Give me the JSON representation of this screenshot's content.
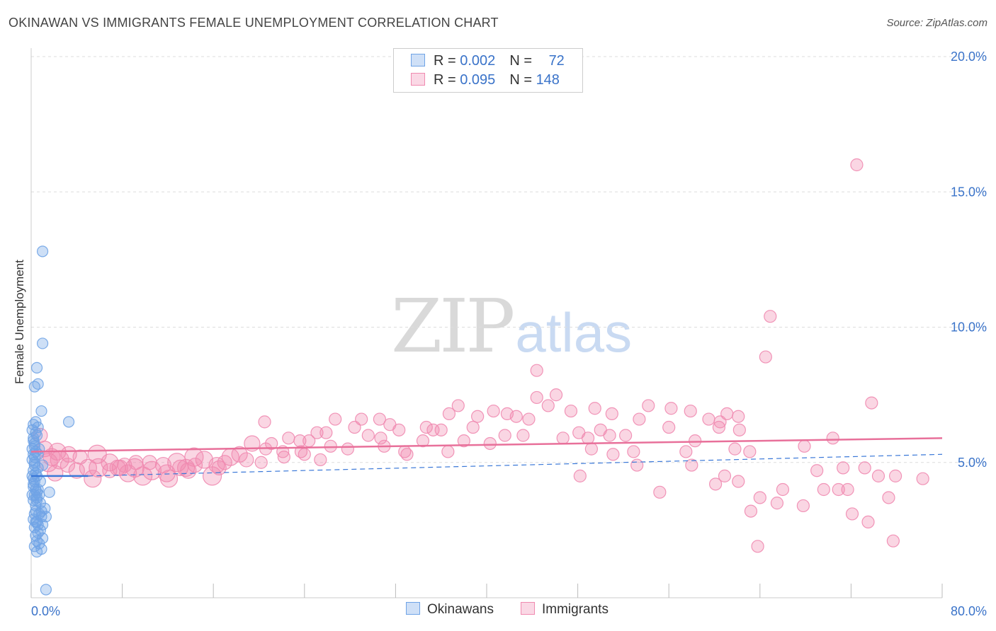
{
  "title": "OKINAWAN VS IMMIGRANTS FEMALE UNEMPLOYMENT CORRELATION CHART",
  "source": "Source: ZipAtlas.com",
  "watermark": {
    "zip": "ZIP",
    "atlas": "atlas"
  },
  "legend": {
    "rows": [
      {
        "r_label": "R = ",
        "r_value": "0.002",
        "n_label": "N = ",
        "n_value": "72",
        "color": "#6fa3e6"
      },
      {
        "r_label": "R = ",
        "r_value": "0.095",
        "n_label": "N = ",
        "n_value": "148",
        "color": "#f08ab0"
      }
    ]
  },
  "chart_data": {
    "type": "scatter",
    "title": "OKINAWAN VS IMMIGRANTS FEMALE UNEMPLOYMENT CORRELATION CHART",
    "xlabel": "",
    "ylabel": "Female Unemployment",
    "xlim": [
      0,
      80
    ],
    "ylim": [
      0,
      20
    ],
    "x_tick_labels": [
      "0.0%",
      "80.0%"
    ],
    "y_ticks": [
      5,
      10,
      15,
      20
    ],
    "y_tick_labels": [
      "5.0%",
      "10.0%",
      "15.0%",
      "20.0%"
    ],
    "grid": true,
    "legend_position": "top-center",
    "series": [
      {
        "name": "Okinawans",
        "color": "#6fa3e6",
        "points": [
          [
            1.0,
            12.8
          ],
          [
            1.0,
            9.4
          ],
          [
            0.5,
            8.5
          ],
          [
            0.6,
            7.9
          ],
          [
            0.3,
            7.8
          ],
          [
            0.9,
            6.9
          ],
          [
            3.3,
            6.5
          ],
          [
            0.4,
            6.5
          ],
          [
            0.2,
            6.4
          ],
          [
            0.1,
            6.2
          ],
          [
            0.5,
            6.0
          ],
          [
            0.2,
            5.8
          ],
          [
            0.3,
            5.6
          ],
          [
            0.1,
            5.5
          ],
          [
            0.4,
            5.4
          ],
          [
            0.2,
            5.3
          ],
          [
            0.6,
            5.3
          ],
          [
            0.1,
            5.1
          ],
          [
            0.3,
            5.0
          ],
          [
            1.0,
            4.9
          ],
          [
            0.2,
            4.7
          ],
          [
            0.4,
            4.6
          ],
          [
            0.1,
            4.5
          ],
          [
            0.5,
            4.5
          ],
          [
            0.3,
            4.3
          ],
          [
            0.8,
            4.3
          ],
          [
            0.2,
            4.2
          ],
          [
            0.4,
            4.0
          ],
          [
            0.6,
            4.0
          ],
          [
            1.6,
            3.9
          ],
          [
            0.1,
            3.8
          ],
          [
            0.3,
            3.8
          ],
          [
            0.7,
            3.8
          ],
          [
            0.2,
            3.6
          ],
          [
            0.5,
            3.6
          ],
          [
            1.2,
            3.3
          ],
          [
            0.4,
            3.2
          ],
          [
            0.3,
            3.1
          ],
          [
            0.7,
            3.1
          ],
          [
            0.9,
            3.0
          ],
          [
            1.3,
            3.0
          ],
          [
            0.2,
            2.9
          ],
          [
            0.5,
            2.8
          ],
          [
            0.6,
            2.7
          ],
          [
            1.0,
            2.7
          ],
          [
            0.3,
            2.6
          ],
          [
            0.8,
            2.5
          ],
          [
            0.4,
            2.3
          ],
          [
            1.0,
            2.2
          ],
          [
            0.5,
            2.1
          ],
          [
            0.7,
            2.0
          ],
          [
            0.3,
            1.9
          ],
          [
            0.9,
            1.8
          ],
          [
            0.5,
            1.7
          ],
          [
            1.3,
            0.3
          ],
          [
            0.2,
            5.9
          ],
          [
            0.4,
            6.1
          ],
          [
            0.3,
            5.2
          ],
          [
            0.6,
            4.8
          ],
          [
            0.2,
            4.1
          ],
          [
            0.5,
            3.9
          ],
          [
            0.8,
            3.5
          ],
          [
            0.4,
            3.4
          ],
          [
            0.6,
            2.4
          ],
          [
            0.3,
            5.7
          ],
          [
            0.7,
            5.5
          ],
          [
            0.2,
            4.4
          ],
          [
            0.5,
            3.7
          ],
          [
            0.9,
            3.2
          ],
          [
            0.4,
            2.8
          ],
          [
            0.6,
            6.3
          ],
          [
            0.3,
            4.9
          ]
        ]
      },
      {
        "name": "Immigrants",
        "color": "#f08ab0",
        "points": [
          [
            72.5,
            16.0
          ],
          [
            64.9,
            10.4
          ],
          [
            64.5,
            8.9
          ],
          [
            44.4,
            8.4
          ],
          [
            73.8,
            7.2
          ],
          [
            46.1,
            7.5
          ],
          [
            44.4,
            7.4
          ],
          [
            45.4,
            7.1
          ],
          [
            47.4,
            6.9
          ],
          [
            49.5,
            7.0
          ],
          [
            51.0,
            6.8
          ],
          [
            54.2,
            7.1
          ],
          [
            56.2,
            7.0
          ],
          [
            57.9,
            6.9
          ],
          [
            37.5,
            7.1
          ],
          [
            36.7,
            6.8
          ],
          [
            39.2,
            6.7
          ],
          [
            40.6,
            6.9
          ],
          [
            41.8,
            6.8
          ],
          [
            42.6,
            6.7
          ],
          [
            43.7,
            6.6
          ],
          [
            59.5,
            6.6
          ],
          [
            61.1,
            6.8
          ],
          [
            60.5,
            6.5
          ],
          [
            62.1,
            6.7
          ],
          [
            53.4,
            6.6
          ],
          [
            26.7,
            6.6
          ],
          [
            29.0,
            6.6
          ],
          [
            30.6,
            6.6
          ],
          [
            31.5,
            6.4
          ],
          [
            20.5,
            6.5
          ],
          [
            34.7,
            6.3
          ],
          [
            35.3,
            6.2
          ],
          [
            38.8,
            6.3
          ],
          [
            32.3,
            6.2
          ],
          [
            36.0,
            6.2
          ],
          [
            28.4,
            6.3
          ],
          [
            25.9,
            6.1
          ],
          [
            29.6,
            6.0
          ],
          [
            30.7,
            5.9
          ],
          [
            25.1,
            6.1
          ],
          [
            22.6,
            5.9
          ],
          [
            23.6,
            5.8
          ],
          [
            19.4,
            5.7
          ],
          [
            21.1,
            5.7
          ],
          [
            24.4,
            5.8
          ],
          [
            34.4,
            5.8
          ],
          [
            38.0,
            5.8
          ],
          [
            40.3,
            5.7
          ],
          [
            41.6,
            6.0
          ],
          [
            43.2,
            6.0
          ],
          [
            46.7,
            5.9
          ],
          [
            48.1,
            6.1
          ],
          [
            48.9,
            5.9
          ],
          [
            50.0,
            6.2
          ],
          [
            50.8,
            6.0
          ],
          [
            52.2,
            6.0
          ],
          [
            56.0,
            6.3
          ],
          [
            58.3,
            5.8
          ],
          [
            60.4,
            6.3
          ],
          [
            62.2,
            6.2
          ],
          [
            67.9,
            5.6
          ],
          [
            70.4,
            5.9
          ],
          [
            20.6,
            5.5
          ],
          [
            22.1,
            5.4
          ],
          [
            23.7,
            5.4
          ],
          [
            26.3,
            5.6
          ],
          [
            27.8,
            5.5
          ],
          [
            31.0,
            5.6
          ],
          [
            32.8,
            5.4
          ],
          [
            33.0,
            5.3
          ],
          [
            36.6,
            5.4
          ],
          [
            49.2,
            5.5
          ],
          [
            51.1,
            5.3
          ],
          [
            52.9,
            5.4
          ],
          [
            57.5,
            5.4
          ],
          [
            61.8,
            5.5
          ],
          [
            63.1,
            5.4
          ],
          [
            17.5,
            5.2
          ],
          [
            18.3,
            5.3
          ],
          [
            18.9,
            5.1
          ],
          [
            20.2,
            5.0
          ],
          [
            22.2,
            5.2
          ],
          [
            24.0,
            5.3
          ],
          [
            25.4,
            5.1
          ],
          [
            14.3,
            5.2
          ],
          [
            15.2,
            5.1
          ],
          [
            16.3,
            4.9
          ],
          [
            17.0,
            5.0
          ],
          [
            12.8,
            5.0
          ],
          [
            13.6,
            4.8
          ],
          [
            11.6,
            4.9
          ],
          [
            10.4,
            5.0
          ],
          [
            9.1,
            4.8
          ],
          [
            8.5,
            4.6
          ],
          [
            7.8,
            4.8
          ],
          [
            6.9,
            4.7
          ],
          [
            5.9,
            4.8
          ],
          [
            5.0,
            4.8
          ],
          [
            4.0,
            4.7
          ],
          [
            3.2,
            4.9
          ],
          [
            2.5,
            5.1
          ],
          [
            1.8,
            5.2
          ],
          [
            1.2,
            5.5
          ],
          [
            0.8,
            6.0
          ],
          [
            1.5,
            5.0
          ],
          [
            2.3,
            5.4
          ],
          [
            3.3,
            5.3
          ],
          [
            4.3,
            5.2
          ],
          [
            5.8,
            5.3
          ],
          [
            6.9,
            5.0
          ],
          [
            7.6,
            4.8
          ],
          [
            9.2,
            5.0
          ],
          [
            10.6,
            4.7
          ],
          [
            11.9,
            4.6
          ],
          [
            13.1,
            4.8
          ],
          [
            14.4,
            4.9
          ],
          [
            15.9,
            4.5
          ],
          [
            5.4,
            4.4
          ],
          [
            2.1,
            4.6
          ],
          [
            8.2,
            4.9
          ],
          [
            9.8,
            4.5
          ],
          [
            12.1,
            4.4
          ],
          [
            13.8,
            4.7
          ],
          [
            16.5,
            4.8
          ],
          [
            48.2,
            4.5
          ],
          [
            60.9,
            4.5
          ],
          [
            53.2,
            4.9
          ],
          [
            58.0,
            4.9
          ],
          [
            69.0,
            4.7
          ],
          [
            71.3,
            4.8
          ],
          [
            73.2,
            4.8
          ],
          [
            74.4,
            4.5
          ],
          [
            75.9,
            4.5
          ],
          [
            78.3,
            4.4
          ],
          [
            70.9,
            4.0
          ],
          [
            69.6,
            4.0
          ],
          [
            71.7,
            4.0
          ],
          [
            66.0,
            4.0
          ],
          [
            62.1,
            4.3
          ],
          [
            60.1,
            4.2
          ],
          [
            55.2,
            3.9
          ],
          [
            64.0,
            3.7
          ],
          [
            65.5,
            3.5
          ],
          [
            67.8,
            3.4
          ],
          [
            75.3,
            3.7
          ],
          [
            63.2,
            3.2
          ],
          [
            72.1,
            3.1
          ],
          [
            73.5,
            2.8
          ],
          [
            75.7,
            2.1
          ],
          [
            63.8,
            1.9
          ]
        ]
      }
    ],
    "trend_lines": [
      {
        "series": "Okinawans",
        "x": [
          0,
          5
        ],
        "y": [
          4.5,
          4.5
        ],
        "style": "solid"
      },
      {
        "series": "Okinawans",
        "x": [
          5,
          80
        ],
        "y": [
          4.5,
          5.3
        ],
        "style": "dashed"
      },
      {
        "series": "Immigrants",
        "x": [
          0,
          80
        ],
        "y": [
          5.4,
          5.9
        ],
        "style": "solid"
      }
    ]
  },
  "bottom_legend": [
    {
      "label": "Okinawans",
      "color": "#6fa3e6"
    },
    {
      "label": "Immigrants",
      "color": "#f08ab0"
    }
  ]
}
